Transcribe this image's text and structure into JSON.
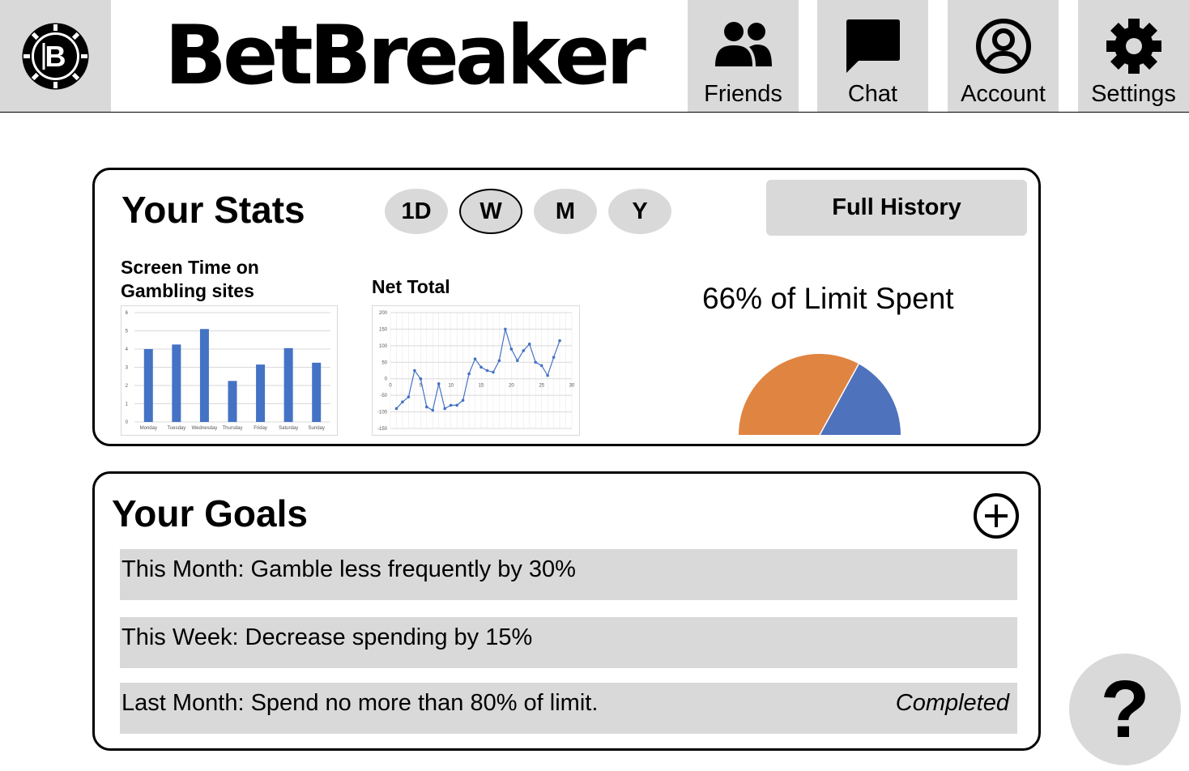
{
  "header": {
    "logo_icon": "poker-chip-icon",
    "title": "BetBreaker",
    "nav": [
      {
        "label": "Friends",
        "icon": "friends-icon"
      },
      {
        "label": "Chat",
        "icon": "chat-icon"
      },
      {
        "label": "Account",
        "icon": "account-icon"
      },
      {
        "label": "Settings",
        "icon": "gear-icon"
      }
    ]
  },
  "stats": {
    "title": "Your Stats",
    "ranges": [
      "1D",
      "W",
      "M",
      "Y"
    ],
    "selected_range": "W",
    "full_history_label": "Full History",
    "screen_time_title": "Screen Time on Gambling sites",
    "net_total_title": "Net Total",
    "limit_text": "66% of Limit Spent",
    "limit_fraction": 0.66,
    "colors": {
      "spent": "#e08442",
      "remaining": "#4f72bd",
      "bar": "#4472c4",
      "line": "#4472c4"
    }
  },
  "chart_data": [
    {
      "type": "bar",
      "categories": [
        "Monday",
        "Tuesday",
        "Wednesday",
        "Thursday",
        "Friday",
        "Saturday",
        "Sunday"
      ],
      "values": [
        4.0,
        4.25,
        5.1,
        2.25,
        3.15,
        4.05,
        3.25
      ],
      "ylim": [
        0,
        6
      ],
      "yticks": [
        0,
        1,
        2,
        3,
        4,
        5,
        6
      ],
      "grid": true
    },
    {
      "type": "line",
      "x": [
        1,
        2,
        3,
        4,
        5,
        6,
        7,
        8,
        9,
        10,
        11,
        12,
        13,
        14,
        15,
        16,
        17,
        18,
        19,
        20,
        21,
        22,
        23,
        24,
        25,
        26,
        27,
        28
      ],
      "y": [
        -90,
        -70,
        -55,
        25,
        0,
        -85,
        -95,
        -15,
        -90,
        -80,
        -80,
        -65,
        15,
        60,
        35,
        25,
        20,
        55,
        150,
        90,
        55,
        85,
        105,
        50,
        40,
        10,
        65,
        115
      ],
      "xlim": [
        0,
        30
      ],
      "ylim": [
        -150,
        200
      ],
      "xticks": [
        0,
        5,
        10,
        15,
        20,
        25,
        30
      ],
      "yticks": [
        -150,
        -100,
        -50,
        0,
        50,
        100,
        150,
        200
      ],
      "grid": true
    }
  ],
  "goals": {
    "title": "Your Goals",
    "add_icon": "plus-circle-icon",
    "items": [
      {
        "text": "This Month: Gamble less frequently by 30%",
        "status": ""
      },
      {
        "text": "This Week: Decrease spending by 15%",
        "status": ""
      },
      {
        "text": "Last Month: Spend no more than 80% of limit.",
        "status": "Completed"
      }
    ]
  },
  "help": {
    "label": "?"
  }
}
